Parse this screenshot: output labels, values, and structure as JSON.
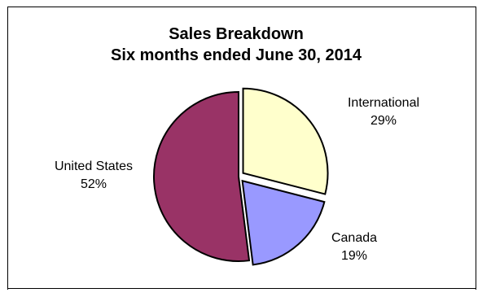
{
  "chart_data": {
    "type": "pie",
    "title": [
      "Sales Breakdown",
      "Six months ended June 30, 2014"
    ],
    "slices": [
      {
        "label": "International",
        "value": 29,
        "value_label": "29%",
        "color": "#ffffcc",
        "exploded": true
      },
      {
        "label": "Canada",
        "value": 19,
        "value_label": "19%",
        "color": "#9999ff",
        "exploded": true
      },
      {
        "label": "United States",
        "value": 52,
        "value_label": "52%",
        "color": "#993366",
        "exploded": false
      }
    ],
    "start_angle_deg": 0,
    "direction": "clockwise",
    "legend": "none"
  }
}
